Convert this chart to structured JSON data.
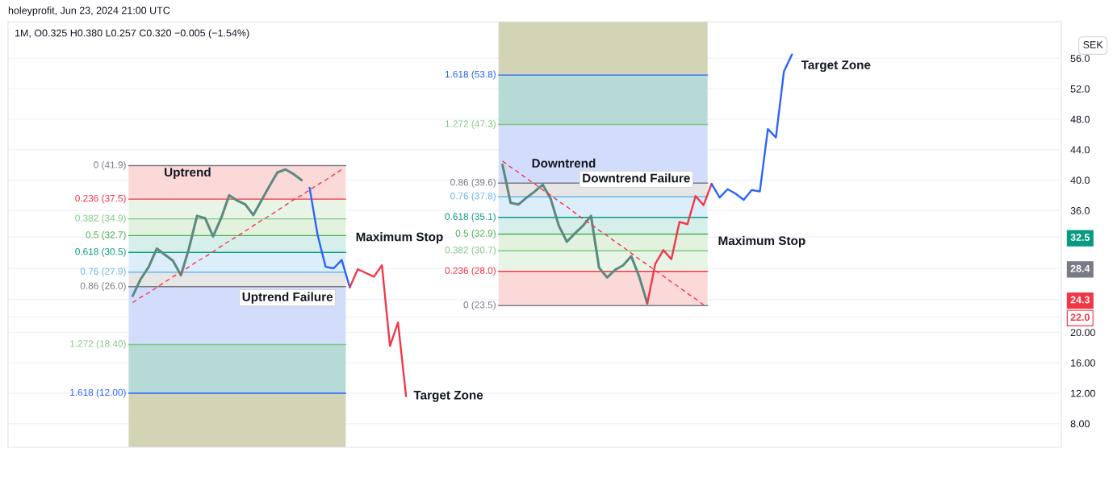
{
  "chart_data": {
    "type": "line",
    "title": "holeyprofit, Jun 23, 2024 21:00 UTC",
    "subtitle": "1M, O0.325 H0.380 L0.257 C0.320 −0.005 (−1.54%)",
    "ylabel": "SEK",
    "categories": [
      null,
      null,
      null,
      null,
      null,
      null,
      null,
      null,
      null,
      null,
      null,
      null,
      null,
      null,
      null,
      null,
      null,
      null,
      null,
      null,
      null,
      null,
      null,
      null,
      null,
      null,
      null,
      null,
      null,
      null,
      null,
      null,
      null,
      null,
      null,
      null,
      null,
      null,
      null,
      null,
      null,
      null,
      null,
      null,
      null,
      null,
      null,
      null,
      null,
      null,
      null,
      null,
      null,
      null,
      null,
      null,
      null,
      null,
      null,
      null,
      null,
      null,
      null,
      null,
      null,
      null,
      null,
      null,
      null,
      null,
      null,
      null,
      null,
      null,
      null,
      null,
      null,
      null,
      null,
      null,
      null,
      null,
      null,
      null,
      null,
      null,
      null,
      null,
      null,
      null,
      null,
      null,
      null,
      null,
      null,
      null,
      null,
      null,
      null,
      null,
      null,
      null,
      null,
      null,
      null,
      null,
      null,
      null,
      null,
      null,
      null,
      null,
      null,
      null,
      null,
      null,
      null,
      null,
      null,
      null,
      null,
      null,
      null,
      null,
      null,
      null,
      null,
      null,
      null,
      null,
      null
    ],
    "series": [
      {
        "color": "#5d8a80",
        "values": [
          null,
          null,
          null,
          null,
          null,
          null,
          null,
          null,
          null,
          null,
          null,
          null,
          null,
          null,
          null,
          24.8,
          27.0,
          28.6,
          31.0,
          30.2,
          29.4,
          27.5,
          31.0,
          35.3,
          35.0,
          32.6,
          35.0,
          38.0,
          37.3,
          36.8,
          35.4,
          37.3,
          39.2,
          41.0,
          41.4,
          40.8,
          40.0,
          null,
          null,
          null,
          null,
          null,
          null,
          null,
          null,
          null,
          null,
          null,
          null,
          null,
          null,
          null,
          null,
          null,
          null,
          null,
          null,
          null,
          null,
          null,
          null,
          null,
          null,
          null,
          null,
          null,
          null,
          null,
          null,
          null,
          null,
          null,
          null,
          null,
          null,
          null,
          null,
          null,
          null,
          null,
          null,
          null,
          null,
          null,
          null,
          null,
          null,
          null,
          null,
          null,
          null,
          null,
          null,
          null,
          null,
          null,
          null,
          null,
          null,
          null,
          null,
          null,
          null,
          null,
          null,
          null,
          null,
          null,
          null,
          null,
          null,
          null,
          null,
          null,
          null,
          null,
          null,
          null,
          null,
          null,
          null,
          null,
          null,
          null,
          null,
          null,
          null,
          null,
          null,
          null,
          null
        ]
      },
      {
        "color": "#f23645",
        "line_style": "dashed",
        "values": [
          null,
          null,
          null,
          null,
          null,
          null,
          null,
          null,
          null,
          null,
          null,
          null,
          null,
          null,
          null,
          23.9,
          24.6,
          25.2,
          25.9,
          26.6,
          27.3,
          27.9,
          28.6,
          29.3,
          29.9,
          30.6,
          31.3,
          32.0,
          32.6,
          33.3,
          34.0,
          34.7,
          35.3,
          36.0,
          36.7,
          37.4,
          38.0,
          38.7,
          39.4,
          40.0,
          40.7,
          41.4,
          null,
          null,
          null,
          null,
          null,
          null,
          null,
          null,
          null,
          null,
          null,
          null,
          null,
          null,
          null,
          null,
          null,
          null,
          null,
          null,
          null,
          null,
          null,
          null,
          null,
          null,
          null,
          null,
          null,
          null,
          null,
          null,
          null,
          null,
          null,
          null,
          null,
          null,
          null,
          null,
          null,
          null,
          null,
          null,
          null,
          null,
          null,
          null,
          null,
          null,
          null,
          null,
          null,
          null,
          null,
          null,
          null,
          null,
          null,
          null,
          null,
          null,
          null,
          null,
          null,
          null,
          null,
          null,
          null,
          null,
          null,
          null,
          null,
          null,
          null,
          null,
          null,
          null,
          null,
          null,
          null,
          null,
          null,
          null,
          null,
          null,
          null,
          null,
          null
        ]
      },
      {
        "color": "#2962ff",
        "values": [
          null,
          null,
          null,
          null,
          null,
          null,
          null,
          null,
          null,
          null,
          null,
          null,
          null,
          null,
          null,
          null,
          null,
          null,
          null,
          null,
          null,
          null,
          null,
          null,
          null,
          null,
          null,
          null,
          null,
          null,
          null,
          null,
          null,
          null,
          null,
          null,
          null,
          39.0,
          32.8,
          28.6,
          28.4,
          29.5,
          25.9,
          null,
          null,
          null,
          null,
          null,
          null,
          null,
          null,
          null,
          null,
          null,
          null,
          null,
          null,
          null,
          null,
          null,
          null,
          null,
          null,
          null,
          null,
          null,
          null,
          null,
          null,
          null,
          null,
          null,
          null,
          null,
          null,
          null,
          null,
          null,
          null,
          null,
          null,
          null,
          null,
          null,
          null,
          null,
          null,
          null,
          null,
          null,
          null,
          null,
          null,
          null,
          null,
          null,
          null,
          null,
          null,
          null,
          null,
          null,
          null,
          null,
          null,
          null,
          null,
          null,
          null,
          null,
          null,
          null,
          null,
          null,
          null,
          null,
          null,
          null,
          null,
          null,
          null,
          null,
          null,
          null,
          null,
          null,
          null,
          null,
          null,
          null,
          null
        ]
      },
      {
        "color": "#f23645",
        "values": [
          null,
          null,
          null,
          null,
          null,
          null,
          null,
          null,
          null,
          null,
          null,
          null,
          null,
          null,
          null,
          null,
          null,
          null,
          null,
          null,
          null,
          null,
          null,
          null,
          null,
          null,
          null,
          null,
          null,
          null,
          null,
          null,
          null,
          null,
          null,
          null,
          null,
          null,
          null,
          null,
          null,
          null,
          25.9,
          28.3,
          27.8,
          27.3,
          28.8,
          18.2,
          21.3,
          11.6,
          null,
          null,
          null,
          null,
          null,
          null,
          null,
          null,
          null,
          null,
          null,
          null,
          null,
          null,
          null,
          null,
          null,
          null,
          null,
          null,
          null,
          null,
          null,
          null,
          null,
          null,
          null,
          null,
          null,
          null,
          null,
          null,
          null,
          null,
          null,
          null,
          null,
          null,
          null,
          null,
          null,
          null,
          null,
          null,
          null,
          null,
          null,
          null,
          null,
          null,
          null,
          null,
          null,
          null,
          null,
          null,
          null,
          null,
          null,
          null,
          null,
          null,
          null,
          null,
          null,
          null,
          null,
          null,
          null,
          null,
          null,
          null,
          null,
          null,
          null,
          null,
          null,
          null,
          null,
          null,
          null
        ]
      },
      {
        "color": "#5d8a80",
        "values": [
          null,
          null,
          null,
          null,
          null,
          null,
          null,
          null,
          null,
          null,
          null,
          null,
          null,
          null,
          null,
          null,
          null,
          null,
          null,
          null,
          null,
          null,
          null,
          null,
          null,
          null,
          null,
          null,
          null,
          null,
          null,
          null,
          null,
          null,
          null,
          null,
          null,
          null,
          null,
          null,
          null,
          null,
          null,
          null,
          null,
          null,
          null,
          null,
          null,
          null,
          null,
          null,
          null,
          null,
          null,
          null,
          null,
          null,
          null,
          null,
          null,
          42.0,
          37.0,
          36.8,
          37.7,
          38.5,
          39.4,
          37.5,
          34.0,
          31.9,
          33.0,
          34.0,
          35.3,
          28.5,
          27.2,
          28.2,
          28.8,
          30.0,
          27.3,
          23.8,
          null,
          null,
          null,
          null,
          null,
          null,
          null,
          null,
          null,
          null,
          null,
          null,
          null,
          null,
          null,
          null,
          null,
          null,
          null,
          null,
          null,
          null,
          null,
          null,
          null,
          null,
          null,
          null,
          null,
          null,
          null,
          null,
          null,
          null,
          null,
          null,
          null,
          null,
          null,
          null,
          null,
          null,
          null,
          null,
          null,
          null,
          null,
          null,
          null,
          null,
          null
        ]
      },
      {
        "color": "#f23645",
        "line_style": "dashed",
        "values": [
          null,
          null,
          null,
          null,
          null,
          null,
          null,
          null,
          null,
          null,
          null,
          null,
          null,
          null,
          null,
          null,
          null,
          null,
          null,
          null,
          null,
          null,
          null,
          null,
          null,
          null,
          null,
          null,
          null,
          null,
          null,
          null,
          null,
          null,
          null,
          null,
          null,
          null,
          null,
          null,
          null,
          null,
          null,
          null,
          null,
          null,
          null,
          null,
          null,
          null,
          null,
          null,
          null,
          null,
          null,
          null,
          null,
          null,
          null,
          null,
          null,
          42.5,
          41.7,
          41.0,
          40.2,
          39.5,
          38.7,
          38.0,
          37.2,
          36.5,
          35.7,
          34.9,
          34.2,
          33.4,
          32.7,
          31.9,
          31.2,
          30.4,
          29.6,
          28.9,
          28.1,
          27.4,
          26.6,
          25.9,
          25.1,
          24.4,
          23.6,
          null,
          null,
          null,
          null,
          null,
          null,
          null,
          null,
          null,
          null,
          null,
          null,
          null,
          null,
          null,
          null,
          null,
          null,
          null,
          null,
          null,
          null,
          null,
          null,
          null,
          null,
          null,
          null,
          null,
          null,
          null,
          null,
          null,
          null,
          null,
          null,
          null,
          null,
          null,
          null,
          null,
          null,
          null,
          null
        ]
      },
      {
        "color": "#f23645",
        "values": [
          null,
          null,
          null,
          null,
          null,
          null,
          null,
          null,
          null,
          null,
          null,
          null,
          null,
          null,
          null,
          null,
          null,
          null,
          null,
          null,
          null,
          null,
          null,
          null,
          null,
          null,
          null,
          null,
          null,
          null,
          null,
          null,
          null,
          null,
          null,
          null,
          null,
          null,
          null,
          null,
          null,
          null,
          null,
          null,
          null,
          null,
          null,
          null,
          null,
          null,
          null,
          null,
          null,
          null,
          null,
          null,
          null,
          null,
          null,
          null,
          null,
          null,
          null,
          null,
          null,
          null,
          null,
          null,
          null,
          null,
          null,
          null,
          null,
          null,
          null,
          null,
          null,
          null,
          null,
          23.8,
          29.0,
          30.8,
          29.6,
          34.5,
          34.2,
          37.9,
          36.7,
          39.5,
          null,
          null,
          null,
          null,
          null,
          null,
          null,
          null,
          null,
          null,
          null,
          null,
          null,
          null,
          null,
          null,
          null,
          null,
          null,
          null,
          null,
          null,
          null,
          null,
          null,
          null,
          null,
          null,
          null,
          null,
          null,
          null,
          null,
          null,
          null,
          null,
          null,
          null,
          null,
          null,
          null,
          null,
          null
        ]
      },
      {
        "color": "#2962ff",
        "values": [
          null,
          null,
          null,
          null,
          null,
          null,
          null,
          null,
          null,
          null,
          null,
          null,
          null,
          null,
          null,
          null,
          null,
          null,
          null,
          null,
          null,
          null,
          null,
          null,
          null,
          null,
          null,
          null,
          null,
          null,
          null,
          null,
          null,
          null,
          null,
          null,
          null,
          null,
          null,
          null,
          null,
          null,
          null,
          null,
          null,
          null,
          null,
          null,
          null,
          null,
          null,
          null,
          null,
          null,
          null,
          null,
          null,
          null,
          null,
          null,
          null,
          null,
          null,
          null,
          null,
          null,
          null,
          null,
          null,
          null,
          null,
          null,
          null,
          null,
          null,
          null,
          null,
          null,
          null,
          null,
          null,
          null,
          null,
          null,
          null,
          null,
          null,
          39.5,
          37.7,
          38.8,
          38.2,
          37.4,
          38.7,
          38.5,
          46.7,
          45.6,
          54.3,
          56.5,
          null,
          null,
          null,
          null,
          null,
          null,
          null,
          null,
          null,
          null,
          null,
          null,
          null,
          null,
          null,
          null,
          null,
          null,
          null,
          null,
          null,
          null,
          null,
          null,
          null,
          null,
          null,
          null,
          null,
          null,
          null,
          null,
          null
        ]
      }
    ],
    "ylim": [
      4.9,
      60.8
    ],
    "yticks": [
      {
        "value": 8,
        "label": "8.00"
      },
      {
        "value": 12,
        "label": "12.00"
      },
      {
        "value": 16,
        "label": "16.00"
      },
      {
        "value": 20,
        "label": "20.00"
      },
      {
        "value": 22,
        "label": "22.0"
      },
      24.3,
      28.4,
      32.5,
      {
        "value": 36,
        "label": "36.0"
      },
      {
        "value": 40,
        "label": "40.0"
      },
      {
        "value": 44,
        "label": "44.0"
      },
      {
        "value": 48,
        "label": "48.0"
      },
      {
        "value": 52,
        "label": "52.0"
      },
      {
        "value": 56,
        "label": "56.0"
      }
    ],
    "grid": "y",
    "bands": [
      {
        "axis": "y",
        "from": 4.9,
        "to": 12.0,
        "color": "#d3d3b6"
      },
      {
        "axis": "y",
        "from": 12.0,
        "to": 18.4,
        "color": "#b6dad5"
      },
      {
        "axis": "y",
        "from": 18.4,
        "to": 26.0,
        "color": "#d2ddfb"
      },
      {
        "axis": "y",
        "from": 26.0,
        "to": 27.9,
        "color": "#e6e6e6"
      },
      {
        "axis": "y",
        "from": 27.9,
        "to": 30.5,
        "color": "#ddeefb"
      },
      {
        "axis": "y",
        "from": 30.5,
        "to": 32.7,
        "color": "#d6efea"
      },
      {
        "axis": "y",
        "from": 32.7,
        "to": 34.9,
        "color": "#e2f2df"
      },
      {
        "axis": "y",
        "from": 34.9,
        "to": 37.5,
        "color": "#e8f5e6"
      },
      {
        "axis": "y",
        "from": 37.5,
        "to": 41.9,
        "color": "#fcd9d9"
      },
      {
        "axis": "y",
        "from": 23.5,
        "to": 28.0,
        "color": "#fcd9d9"
      },
      {
        "axis": "y",
        "from": 28.0,
        "to": 30.7,
        "color": "#e8f5e6"
      },
      {
        "axis": "y",
        "from": 30.7,
        "to": 32.9,
        "color": "#e2f2df"
      },
      {
        "axis": "y",
        "from": 32.9,
        "to": 35.1,
        "color": "#d6efea"
      },
      {
        "axis": "y",
        "from": 35.1,
        "to": 37.8,
        "color": "#ddeefb"
      },
      {
        "axis": "y",
        "from": 37.8,
        "to": 39.6,
        "color": "#e6e6e6"
      },
      {
        "axis": "y",
        "from": 39.6,
        "to": 47.3,
        "color": "#d2ddfb"
      },
      {
        "axis": "y",
        "from": 47.3,
        "to": 53.8,
        "color": "#b6dad5"
      },
      {
        "axis": "y",
        "from": 53.8,
        "to": 60.8,
        "color": "#d3d3b6"
      }
    ],
    "ref_lines": [
      {
        "axis": "y",
        "value": 41.9,
        "label": "0 (41.9)",
        "color": "#787b86"
      },
      {
        "axis": "y",
        "value": 37.5,
        "label": "0.236 (37.5)",
        "color": "#f23645"
      },
      {
        "axis": "y",
        "value": 34.9,
        "label": "0.382 (34.9)",
        "color": "#81c784"
      },
      {
        "axis": "y",
        "value": 32.7,
        "label": "0.5 (32.7)",
        "color": "#4caf50"
      },
      {
        "axis": "y",
        "value": 30.5,
        "label": "0.618 (30.5)",
        "color": "#089981"
      },
      {
        "axis": "y",
        "value": 27.9,
        "label": "0.76 (27.9)",
        "color": "#64b5f6"
      },
      {
        "axis": "y",
        "value": 26.0,
        "label": "0.86 (26.0)",
        "color": "#787b86"
      },
      {
        "axis": "y",
        "value": 18.4,
        "label": "1.272 (18.40)",
        "color": "#81c784"
      },
      {
        "axis": "y",
        "value": 12.0,
        "label": "1.618 (12.00)",
        "color": "#2962ff"
      },
      {
        "axis": "y",
        "value": 23.5,
        "label": "0 (23.5)",
        "color": "#787b86"
      },
      {
        "axis": "y",
        "value": 28.0,
        "label": "0.236 (28.0)",
        "color": "#f23645"
      },
      {
        "axis": "y",
        "value": 30.7,
        "label": "0.382 (30.7)",
        "color": "#81c784"
      },
      {
        "axis": "y",
        "value": 32.9,
        "label": "0.5 (32.9)",
        "color": "#4caf50"
      },
      {
        "axis": "y",
        "value": 35.1,
        "label": "0.618 (35.1)",
        "color": "#089981"
      },
      {
        "axis": "y",
        "value": 37.8,
        "label": "0.76 (37.8)",
        "color": "#64b5f6"
      },
      {
        "axis": "y",
        "value": 39.6,
        "label": "0.86 (39.6)",
        "color": "#787b86"
      },
      {
        "axis": "y",
        "value": 47.3,
        "label": "1.272 (47.3)",
        "color": "#81c784"
      },
      {
        "axis": "y",
        "value": 53.8,
        "label": "1.618 (53.8)",
        "color": "#2962ff"
      }
    ],
    "annotations": [
      "Uptrend",
      "Uptrend Failure",
      "Maximum Stop",
      "Target Zone",
      "Downtrend",
      "Downtrend Failure",
      "Maximum Stop",
      "Target Zone"
    ]
  }
}
